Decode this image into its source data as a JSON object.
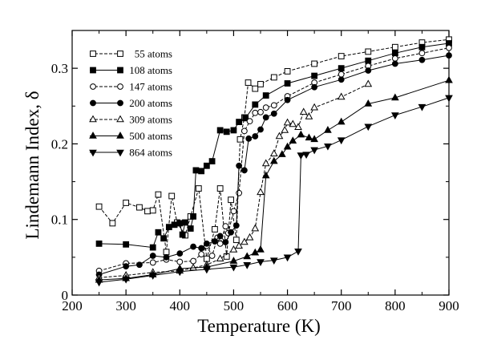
{
  "chart_data": {
    "type": "line",
    "title": "",
    "xlabel": "Temperature (K)",
    "ylabel": "Lindemann Index, δ",
    "xlim": [
      200,
      900
    ],
    "ylim": [
      0,
      0.35
    ],
    "xticks": [
      200,
      300,
      400,
      500,
      600,
      700,
      800,
      900
    ],
    "xtick_labels": [
      "200",
      "300",
      "400",
      "500",
      "600",
      "700",
      "800",
      "900"
    ],
    "yticks": [
      0,
      0.1,
      0.2,
      0.3
    ],
    "ytick_labels": [
      "0",
      "0.1",
      "0.2",
      "0.3"
    ],
    "grid": false,
    "legend_position": "top-left",
    "series": [
      {
        "name": "55 atoms",
        "marker": "square-open",
        "line": "dashed",
        "points": [
          [
            250,
            0.117
          ],
          [
            275,
            0.095
          ],
          [
            300,
            0.122
          ],
          [
            325,
            0.116
          ],
          [
            340,
            0.111
          ],
          [
            350,
            0.112
          ],
          [
            360,
            0.133
          ],
          [
            375,
            0.057
          ],
          [
            385,
            0.131
          ],
          [
            395,
            0.096
          ],
          [
            410,
            0.079
          ],
          [
            420,
            0.104
          ],
          [
            435,
            0.141
          ],
          [
            450,
            0.048
          ],
          [
            465,
            0.087
          ],
          [
            475,
            0.141
          ],
          [
            487,
            0.051
          ],
          [
            495,
            0.126
          ],
          [
            505,
            0.073
          ],
          [
            512,
            0.206
          ],
          [
            520,
            0.235
          ],
          [
            527,
            0.281
          ],
          [
            540,
            0.273
          ],
          [
            550,
            0.279
          ],
          [
            575,
            0.288
          ],
          [
            600,
            0.296
          ],
          [
            650,
            0.306
          ],
          [
            700,
            0.316
          ],
          [
            750,
            0.322
          ],
          [
            800,
            0.328
          ],
          [
            850,
            0.334
          ],
          [
            900,
            0.338
          ]
        ]
      },
      {
        "name": "108 atoms",
        "marker": "square-filled",
        "line": "solid",
        "points": [
          [
            250,
            0.068
          ],
          [
            300,
            0.067
          ],
          [
            350,
            0.063
          ],
          [
            360,
            0.083
          ],
          [
            370,
            0.075
          ],
          [
            380,
            0.09
          ],
          [
            390,
            0.093
          ],
          [
            400,
            0.095
          ],
          [
            405,
            0.08
          ],
          [
            410,
            0.096
          ],
          [
            420,
            0.088
          ],
          [
            425,
            0.104
          ],
          [
            430,
            0.165
          ],
          [
            440,
            0.164
          ],
          [
            450,
            0.171
          ],
          [
            460,
            0.177
          ],
          [
            475,
            0.218
          ],
          [
            487,
            0.216
          ],
          [
            500,
            0.218
          ],
          [
            510,
            0.229
          ],
          [
            522,
            0.234
          ],
          [
            540,
            0.252
          ],
          [
            560,
            0.264
          ],
          [
            600,
            0.28
          ],
          [
            650,
            0.29
          ],
          [
            700,
            0.3
          ],
          [
            750,
            0.31
          ],
          [
            800,
            0.32
          ],
          [
            850,
            0.328
          ],
          [
            900,
            0.333
          ]
        ]
      },
      {
        "name": "147 atoms",
        "marker": "circle-open",
        "line": "dashed",
        "points": [
          [
            250,
            0.032
          ],
          [
            300,
            0.042
          ],
          [
            350,
            0.043
          ],
          [
            375,
            0.047
          ],
          [
            400,
            0.044
          ],
          [
            425,
            0.045
          ],
          [
            440,
            0.054
          ],
          [
            450,
            0.065
          ],
          [
            460,
            0.052
          ],
          [
            470,
            0.076
          ],
          [
            475,
            0.068
          ],
          [
            485,
            0.091
          ],
          [
            490,
            0.082
          ],
          [
            500,
            0.111
          ],
          [
            510,
            0.135
          ],
          [
            520,
            0.217
          ],
          [
            530,
            0.23
          ],
          [
            540,
            0.241
          ],
          [
            550,
            0.242
          ],
          [
            560,
            0.248
          ],
          [
            575,
            0.251
          ],
          [
            600,
            0.263
          ],
          [
            650,
            0.281
          ],
          [
            700,
            0.292
          ],
          [
            750,
            0.303
          ],
          [
            800,
            0.313
          ],
          [
            850,
            0.32
          ],
          [
            900,
            0.327
          ]
        ]
      },
      {
        "name": "200 atoms",
        "marker": "circle-filled",
        "line": "solid",
        "points": [
          [
            250,
            0.027
          ],
          [
            300,
            0.038
          ],
          [
            325,
            0.04
          ],
          [
            350,
            0.052
          ],
          [
            375,
            0.05
          ],
          [
            400,
            0.055
          ],
          [
            425,
            0.064
          ],
          [
            440,
            0.062
          ],
          [
            450,
            0.068
          ],
          [
            465,
            0.071
          ],
          [
            475,
            0.078
          ],
          [
            485,
            0.07
          ],
          [
            495,
            0.083
          ],
          [
            505,
            0.092
          ],
          [
            510,
            0.171
          ],
          [
            520,
            0.165
          ],
          [
            528,
            0.207
          ],
          [
            540,
            0.21
          ],
          [
            550,
            0.219
          ],
          [
            560,
            0.235
          ],
          [
            575,
            0.24
          ],
          [
            600,
            0.258
          ],
          [
            650,
            0.275
          ],
          [
            700,
            0.285
          ],
          [
            750,
            0.297
          ],
          [
            800,
            0.306
          ],
          [
            850,
            0.311
          ],
          [
            900,
            0.317
          ]
        ]
      },
      {
        "name": "309 atoms",
        "marker": "triangle-open",
        "line": "dashed",
        "points": [
          [
            250,
            0.023
          ],
          [
            300,
            0.026
          ],
          [
            350,
            0.03
          ],
          [
            400,
            0.032
          ],
          [
            425,
            0.036
          ],
          [
            450,
            0.04
          ],
          [
            475,
            0.048
          ],
          [
            500,
            0.06
          ],
          [
            510,
            0.065
          ],
          [
            520,
            0.07
          ],
          [
            530,
            0.076
          ],
          [
            540,
            0.088
          ],
          [
            550,
            0.136
          ],
          [
            560,
            0.174
          ],
          [
            575,
            0.187
          ],
          [
            585,
            0.21
          ],
          [
            595,
            0.218
          ],
          [
            600,
            0.228
          ],
          [
            610,
            0.226
          ],
          [
            620,
            0.222
          ],
          [
            630,
            0.242
          ],
          [
            640,
            0.236
          ],
          [
            650,
            0.248
          ],
          [
            700,
            0.262
          ],
          [
            750,
            0.279
          ]
        ]
      },
      {
        "name": "500 atoms",
        "marker": "triangle-filled",
        "line": "solid",
        "points": [
          [
            250,
            0.02
          ],
          [
            300,
            0.022
          ],
          [
            350,
            0.027
          ],
          [
            400,
            0.035
          ],
          [
            450,
            0.037
          ],
          [
            500,
            0.045
          ],
          [
            525,
            0.051
          ],
          [
            540,
            0.056
          ],
          [
            550,
            0.06
          ],
          [
            560,
            0.158
          ],
          [
            575,
            0.177
          ],
          [
            590,
            0.186
          ],
          [
            600,
            0.196
          ],
          [
            610,
            0.204
          ],
          [
            625,
            0.212
          ],
          [
            640,
            0.208
          ],
          [
            650,
            0.206
          ],
          [
            675,
            0.218
          ],
          [
            700,
            0.229
          ],
          [
            750,
            0.253
          ],
          [
            800,
            0.261
          ],
          [
            900,
            0.284
          ]
        ]
      },
      {
        "name": "864 atoms",
        "marker": "triangle-down-filled",
        "line": "solid",
        "points": [
          [
            250,
            0.017
          ],
          [
            300,
            0.021
          ],
          [
            350,
            0.026
          ],
          [
            400,
            0.031
          ],
          [
            450,
            0.034
          ],
          [
            500,
            0.037
          ],
          [
            525,
            0.04
          ],
          [
            550,
            0.044
          ],
          [
            575,
            0.046
          ],
          [
            600,
            0.05
          ],
          [
            620,
            0.058
          ],
          [
            625,
            0.185
          ],
          [
            635,
            0.186
          ],
          [
            650,
            0.192
          ],
          [
            675,
            0.197
          ],
          [
            700,
            0.205
          ],
          [
            750,
            0.223
          ],
          [
            800,
            0.238
          ],
          [
            850,
            0.249
          ],
          [
            900,
            0.261
          ]
        ]
      }
    ]
  }
}
